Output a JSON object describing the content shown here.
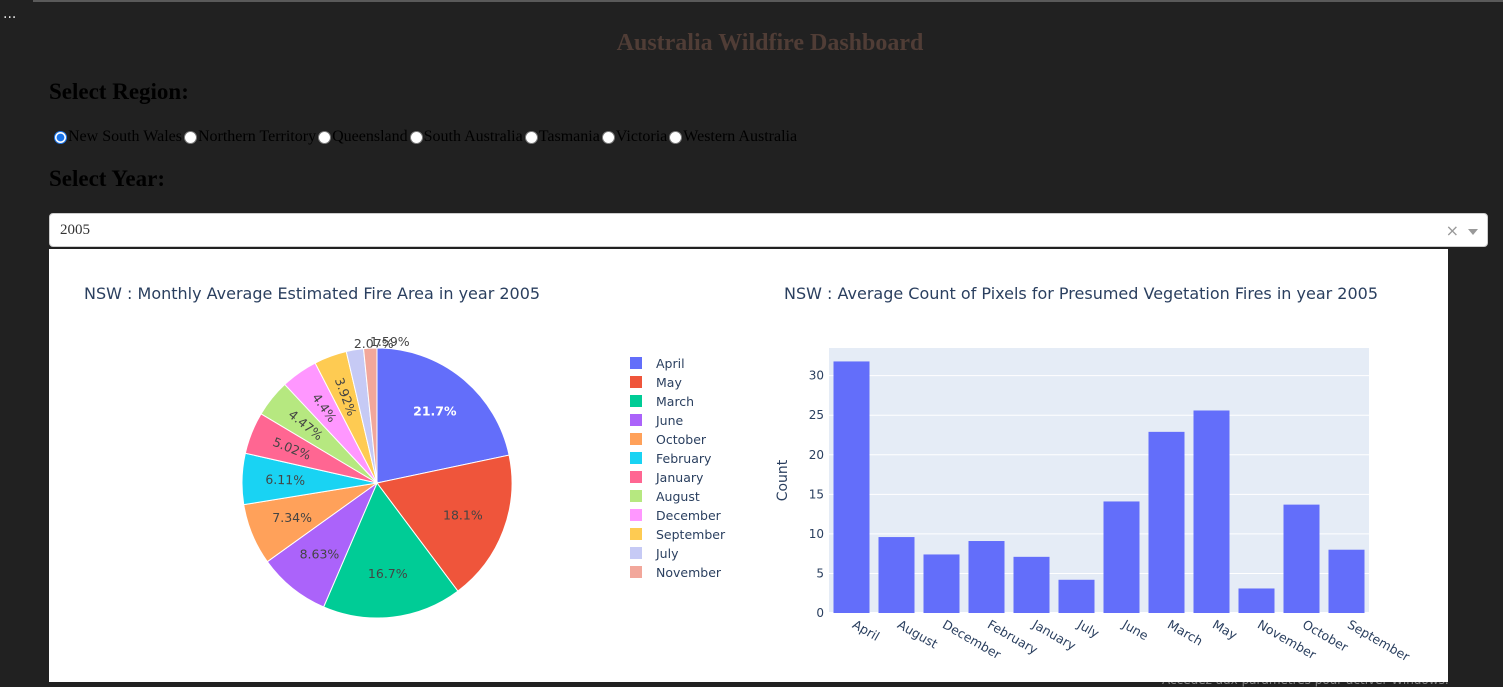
{
  "app": {
    "ellipsis": "...",
    "title": "Australia Wildfire Dashboard",
    "region_label": "Select Region:",
    "year_label": "Select Year:",
    "watermark": "Activer Windows",
    "watermark_sub": "Accédez aux paramètres pour activer Windows."
  },
  "regions": {
    "selected": "New South Wales",
    "options": [
      "New South Wales",
      "Northern Territory",
      "Queensland",
      "South Australia",
      "Tasmania",
      "Victoria",
      "Western Australia"
    ]
  },
  "year_dropdown": {
    "value": "2005",
    "clear_icon": "×",
    "caret_icon": "chevron-down-icon"
  },
  "colors": {
    "bar": "#636efa",
    "plot_bg": "#e5ecf6",
    "text": "#2a3f5f",
    "pie": [
      "#636efa",
      "#ef553b",
      "#00cc96",
      "#ab63fa",
      "#ffa15a",
      "#19d3f3",
      "#ff6692",
      "#b6e880",
      "#ff97ff",
      "#fecb52",
      "#c6caf5",
      "#f2a79b"
    ]
  },
  "chart_data": [
    {
      "type": "pie",
      "title": "NSW : Monthly Average Estimated Fire Area in year 2005",
      "labels": [
        "April",
        "May",
        "March",
        "June",
        "October",
        "February",
        "January",
        "August",
        "December",
        "September",
        "July",
        "November"
      ],
      "values": [
        21.7,
        18.1,
        16.7,
        8.63,
        7.34,
        6.11,
        5.02,
        4.47,
        4.4,
        3.92,
        2.07,
        1.59
      ],
      "text_labels": [
        "21.7%",
        "18.1%",
        "16.7%",
        "8.63%",
        "7.34%",
        "6.11%",
        "5.02%",
        "4.47%",
        "4.4%",
        "3.92%",
        "2.07%",
        "1.59%"
      ],
      "legend": "right"
    },
    {
      "type": "bar",
      "title": "NSW : Average Count of Pixels for Presumed Vegetation Fires in year 2005",
      "categories": [
        "April",
        "August",
        "December",
        "February",
        "January",
        "July",
        "June",
        "March",
        "May",
        "November",
        "October",
        "September"
      ],
      "values": [
        31.8,
        9.6,
        7.4,
        9.1,
        7.1,
        4.2,
        14.1,
        22.9,
        25.6,
        3.1,
        13.7,
        8.0
      ],
      "xlabel": "",
      "ylabel": "Count",
      "ylim": [
        0,
        33.5
      ],
      "yticks": [
        0,
        5,
        10,
        15,
        20,
        25,
        30
      ],
      "grid": true
    }
  ]
}
